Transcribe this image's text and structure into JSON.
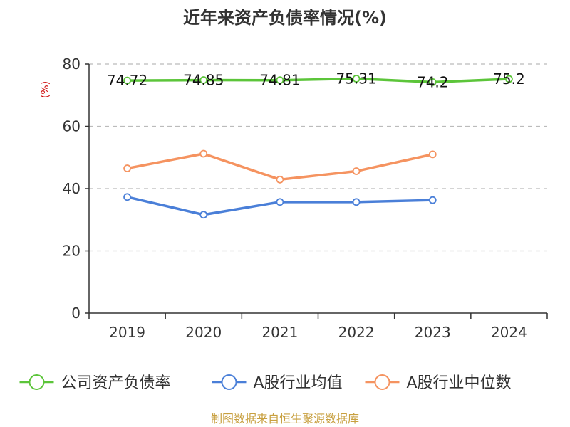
{
  "chart_data": {
    "type": "line",
    "title": "近年来资产负债率情况(%)",
    "ylabel": "(%)",
    "xlabel": "",
    "categories": [
      "2019",
      "2020",
      "2021",
      "2022",
      "2023",
      "2024"
    ],
    "ylim": [
      0,
      80
    ],
    "yticks": [
      0,
      20,
      40,
      60,
      80
    ],
    "grid": true,
    "legend_position": "bottom",
    "series": [
      {
        "name": "公司资产负债率",
        "color": "#5cc53a",
        "values": [
          74.72,
          74.85,
          74.81,
          75.31,
          74.2,
          75.2
        ],
        "labels": [
          "74.72",
          "74.85",
          "74.81",
          "75.31",
          "74.2",
          "75.2"
        ]
      },
      {
        "name": "A股行业均值",
        "color": "#4a7fd8",
        "values": [
          37.3,
          31.6,
          35.7,
          35.7,
          36.3,
          null
        ]
      },
      {
        "name": "A股行业中位数",
        "color": "#f59360",
        "values": [
          46.5,
          51.2,
          42.9,
          45.6,
          51.0,
          null
        ]
      }
    ]
  },
  "source": "制图数据来自恒生聚源数据库"
}
